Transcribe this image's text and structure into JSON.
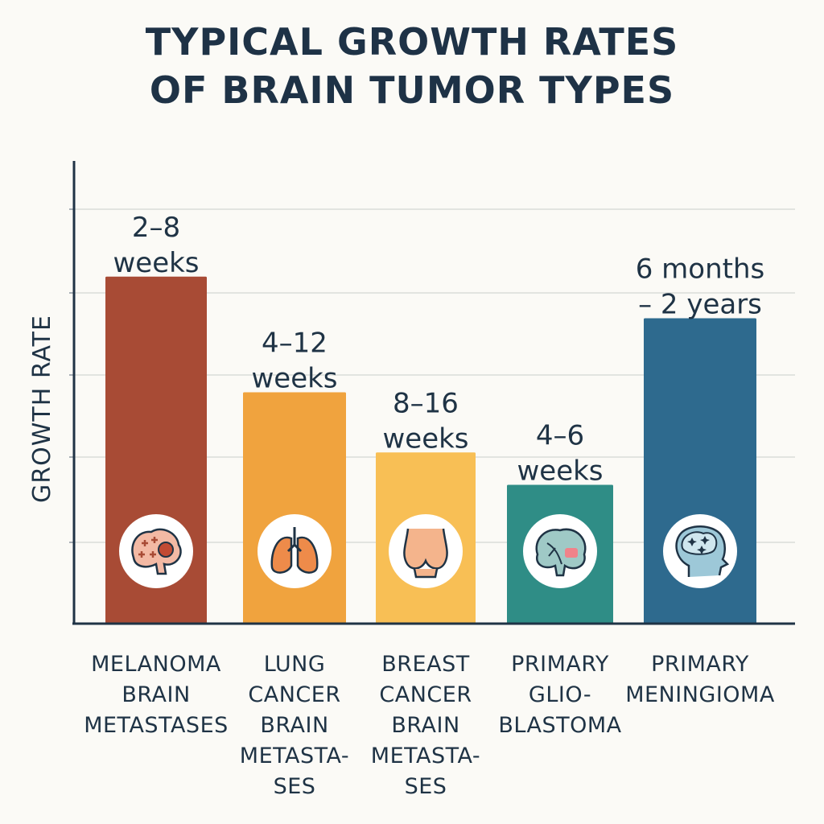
{
  "chart_data": {
    "type": "bar",
    "title_lines": [
      "TYPICAL GROWTH RATES",
      "OF BRAIN TUMOR TYPES"
    ],
    "ylabel": "GROWTH RATE",
    "xlabel": "",
    "ylim": [
      0,
      100
    ],
    "grid": true,
    "categories": [
      "MELANOMA BRAIN METASTASES",
      "LUNG CANCER BRAIN METASTASES",
      "BREAST CANCER BRAIN METASTASES",
      "PRIMARY GLIOBLASTOMA",
      "PRIMARY MENINGIOMA"
    ],
    "category_label_lines": [
      [
        "MELANOMA",
        "BRAIN",
        "METASTASES"
      ],
      [
        "LUNG",
        "CANCER",
        "BRAIN",
        "METASTA-",
        "SES"
      ],
      [
        "BREAST",
        "CANCER",
        "BRAIN",
        "METASTA-",
        "SES"
      ],
      [
        "PRIMARY",
        "GLIO-",
        "BLASTOMA"
      ],
      [
        "PRIMARY",
        "MENINGIOMA"
      ]
    ],
    "values": [
      75,
      50,
      37,
      30,
      66
    ],
    "value_labels": [
      [
        "2–8",
        "weeks"
      ],
      [
        "4–12",
        "weeks"
      ],
      [
        "8–16",
        "weeks"
      ],
      [
        "4–6",
        "weeks"
      ],
      [
        "6 months",
        "– 2 years"
      ]
    ],
    "colors": [
      "#a84b35",
      "#f0a33e",
      "#f8bf55",
      "#2f8d86",
      "#2e6a8e"
    ],
    "icons": [
      "brain-tumor-icon",
      "lungs-icon",
      "breast-icon",
      "brain-glioma-icon",
      "head-brain-icon"
    ]
  }
}
